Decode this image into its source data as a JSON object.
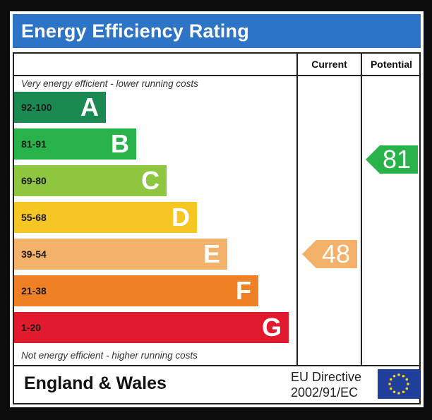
{
  "title": "Energy Efficiency Rating",
  "columns": {
    "current": "Current",
    "potential": "Potential"
  },
  "notes": {
    "top": "Very energy efficient - lower running costs",
    "bottom": "Not energy efficient - higher running costs"
  },
  "bands": [
    {
      "range": "92-100",
      "letter": "A",
      "color": "#1b8a52"
    },
    {
      "range": "81-91",
      "letter": "B",
      "color": "#27b24a"
    },
    {
      "range": "69-80",
      "letter": "C",
      "color": "#8ec63f"
    },
    {
      "range": "55-68",
      "letter": "D",
      "color": "#f6c622"
    },
    {
      "range": "39-54",
      "letter": "E",
      "color": "#f4b169"
    },
    {
      "range": "21-38",
      "letter": "F",
      "color": "#ef8124"
    },
    {
      "range": "1-20",
      "letter": "G",
      "color": "#e11b2d"
    }
  ],
  "current": {
    "value": "48",
    "band": "E",
    "color": "#f4b169"
  },
  "potential": {
    "value": "81",
    "band": "B",
    "color": "#27b24a"
  },
  "footer": {
    "region": "England & Wales",
    "directive_line1": "EU Directive",
    "directive_line2": "2002/91/EC",
    "flag_icon": "eu-flag-icon"
  }
}
